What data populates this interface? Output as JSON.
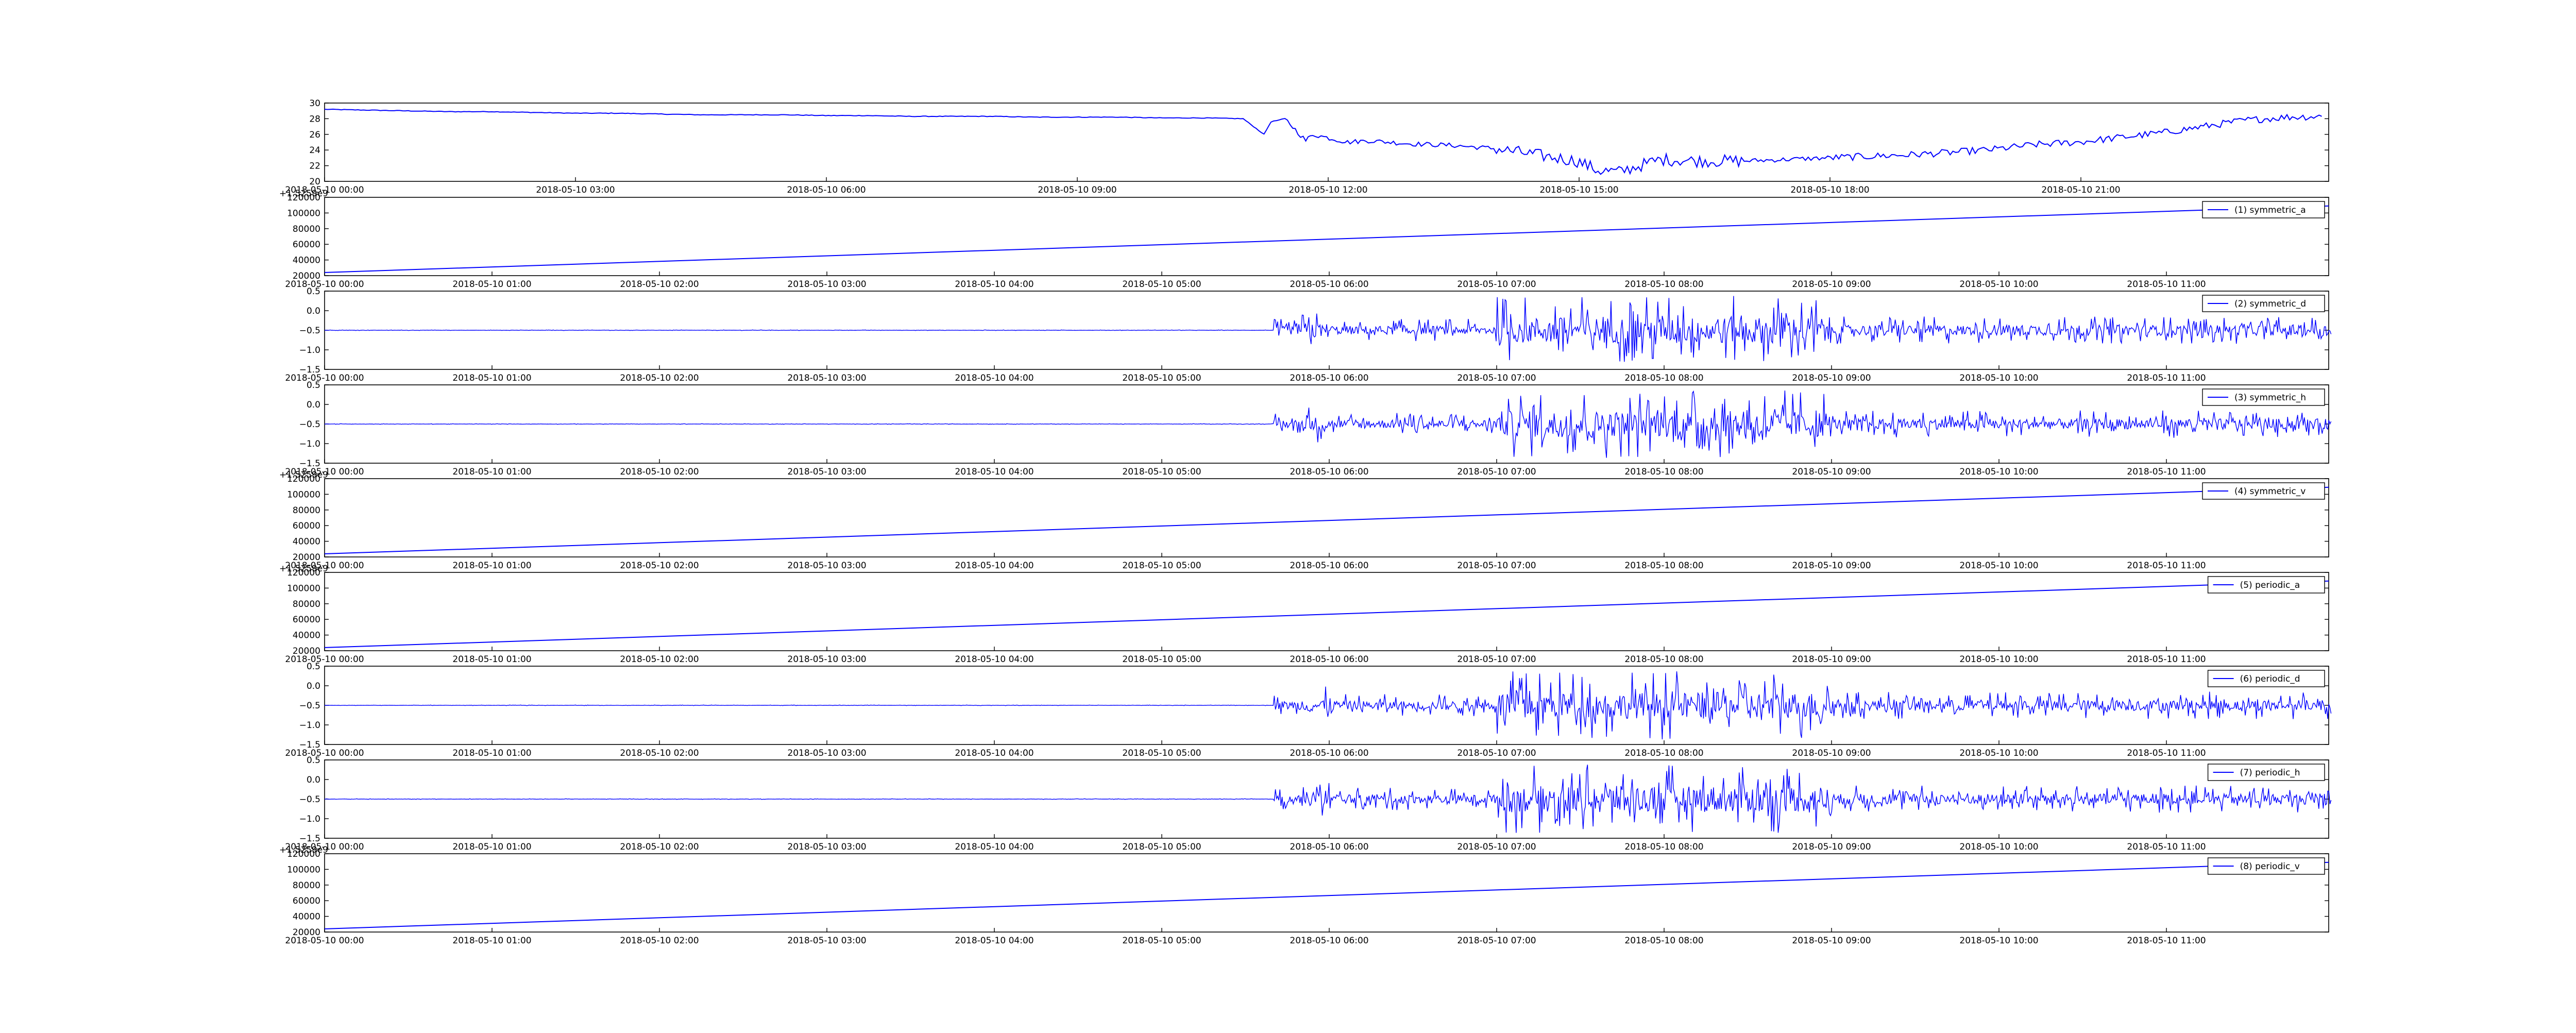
{
  "chart_data": [
    {
      "type": "line",
      "title": "",
      "xlabel": "",
      "ylabel": "",
      "ylim": [
        20,
        30
      ],
      "yticks": [
        "20",
        "22",
        "24",
        "26",
        "28",
        "30"
      ],
      "xticks": [
        "2018-05-10 00:00",
        "2018-05-10 03:00",
        "2018-05-10 06:00",
        "2018-05-10 09:00",
        "2018-05-10 12:00",
        "2018-05-10 15:00",
        "2018-05-10 18:00",
        "2018-05-10 21:00"
      ],
      "series_color": "#0000ff",
      "x": [
        "2018-05-10 00:00",
        "2018-05-10 00:30",
        "2018-05-10 01:00",
        "2018-05-10 01:30",
        "2018-05-10 02:00",
        "2018-05-10 02:30",
        "2018-05-10 03:00",
        "2018-05-10 03:30",
        "2018-05-10 04:00",
        "2018-05-10 04:30",
        "2018-05-10 05:00",
        "2018-05-10 05:30",
        "2018-05-10 06:00",
        "2018-05-10 06:30",
        "2018-05-10 07:00",
        "2018-05-10 07:30",
        "2018-05-10 08:00",
        "2018-05-10 08:30",
        "2018-05-10 09:00",
        "2018-05-10 09:30",
        "2018-05-10 10:00",
        "2018-05-10 10:30",
        "2018-05-10 11:00",
        "2018-05-10 11:15",
        "2018-05-10 11:20",
        "2018-05-10 11:30",
        "2018-05-10 11:45",
        "2018-05-10 11:50",
        "2018-05-10 12:00",
        "2018-05-10 12:15",
        "2018-05-10 12:30",
        "2018-05-10 13:00",
        "2018-05-10 13:30",
        "2018-05-10 14:00",
        "2018-05-10 14:30",
        "2018-05-10 15:00",
        "2018-05-10 15:15",
        "2018-05-10 15:30",
        "2018-05-10 16:00",
        "2018-05-10 16:30",
        "2018-05-10 17:00",
        "2018-05-10 17:30",
        "2018-05-10 18:00",
        "2018-05-10 18:30",
        "2018-05-10 19:00",
        "2018-05-10 19:30",
        "2018-05-10 20:00",
        "2018-05-10 20:30",
        "2018-05-10 21:00",
        "2018-05-10 21:30",
        "2018-05-10 22:00",
        "2018-05-10 22:30",
        "2018-05-10 23:00",
        "2018-05-10 23:30",
        "2018-05-10 23:55"
      ],
      "values": [
        29.2,
        29.1,
        29.0,
        28.9,
        28.9,
        28.8,
        28.7,
        28.7,
        28.6,
        28.5,
        28.5,
        28.5,
        28.4,
        28.4,
        28.3,
        28.3,
        28.3,
        28.2,
        28.2,
        28.2,
        28.1,
        28.1,
        28.0,
        26.0,
        27.6,
        28.0,
        25.2,
        26.0,
        25.6,
        25.0,
        25.2,
        24.8,
        24.6,
        24.2,
        23.4,
        22.6,
        21.4,
        21.2,
        22.8,
        22.6,
        22.6,
        22.8,
        23.0,
        23.2,
        23.4,
        23.7,
        24.1,
        24.7,
        25.0,
        25.6,
        26.2,
        27.0,
        27.8,
        28.2,
        28.3
      ]
    },
    {
      "type": "line",
      "title": "",
      "ylim": [
        20000,
        120000
      ],
      "offset_label": "+1.5259e9",
      "yticks": [
        "20000",
        "40000",
        "60000",
        "80000",
        "100000",
        "120000"
      ],
      "xticks": [
        "2018-05-10 00:00",
        "2018-05-10 01:00",
        "2018-05-10 02:00",
        "2018-05-10 03:00",
        "2018-05-10 04:00",
        "2018-05-10 05:00",
        "2018-05-10 06:00",
        "2018-05-10 07:00",
        "2018-05-10 08:00",
        "2018-05-10 09:00",
        "2018-05-10 10:00",
        "2018-05-10 11:00"
      ],
      "series": [
        {
          "name": "(1) symmetric_a",
          "x": [
            "2018-05-10 00:00",
            "2018-05-10 11:59"
          ],
          "values": [
            24000,
            109000
          ]
        }
      ]
    },
    {
      "type": "line",
      "title": "",
      "ylim": [
        -1.5,
        0.5
      ],
      "yticks": [
        "−1.5",
        "−1.0",
        "−0.5",
        "0.0",
        "0.5"
      ],
      "xticks": [
        "2018-05-10 00:00",
        "2018-05-10 01:00",
        "2018-05-10 02:00",
        "2018-05-10 03:00",
        "2018-05-10 04:00",
        "2018-05-10 05:00",
        "2018-05-10 06:00",
        "2018-05-10 07:00",
        "2018-05-10 08:00",
        "2018-05-10 09:00",
        "2018-05-10 10:00",
        "2018-05-10 11:00"
      ],
      "baseline": -0.5,
      "series": [
        {
          "name": "(2) symmetric_d"
        }
      ]
    },
    {
      "type": "line",
      "title": "",
      "ylim": [
        -1.5,
        0.5
      ],
      "yticks": [
        "−1.5",
        "−1.0",
        "−0.5",
        "0.0",
        "0.5"
      ],
      "xticks": [
        "2018-05-10 00:00",
        "2018-05-10 01:00",
        "2018-05-10 02:00",
        "2018-05-10 03:00",
        "2018-05-10 04:00",
        "2018-05-10 05:00",
        "2018-05-10 06:00",
        "2018-05-10 07:00",
        "2018-05-10 08:00",
        "2018-05-10 09:00",
        "2018-05-10 10:00",
        "2018-05-10 11:00"
      ],
      "baseline": -0.5,
      "series": [
        {
          "name": "(3) symmetric_h"
        }
      ]
    },
    {
      "type": "line",
      "title": "",
      "ylim": [
        20000,
        120000
      ],
      "offset_label": "+1.5259e9",
      "yticks": [
        "20000",
        "40000",
        "60000",
        "80000",
        "100000",
        "120000"
      ],
      "xticks": [
        "2018-05-10 00:00",
        "2018-05-10 01:00",
        "2018-05-10 02:00",
        "2018-05-10 03:00",
        "2018-05-10 04:00",
        "2018-05-10 05:00",
        "2018-05-10 06:00",
        "2018-05-10 07:00",
        "2018-05-10 08:00",
        "2018-05-10 09:00",
        "2018-05-10 10:00",
        "2018-05-10 11:00"
      ],
      "series": [
        {
          "name": "(4) symmetric_v",
          "x": [
            "2018-05-10 00:00",
            "2018-05-10 11:59"
          ],
          "values": [
            24000,
            109000
          ]
        }
      ]
    },
    {
      "type": "line",
      "title": "",
      "ylim": [
        20000,
        120000
      ],
      "offset_label": "+1.5259e9",
      "yticks": [
        "20000",
        "40000",
        "60000",
        "80000",
        "100000",
        "120000"
      ],
      "xticks": [
        "2018-05-10 00:00",
        "2018-05-10 01:00",
        "2018-05-10 02:00",
        "2018-05-10 03:00",
        "2018-05-10 04:00",
        "2018-05-10 05:00",
        "2018-05-10 06:00",
        "2018-05-10 07:00",
        "2018-05-10 08:00",
        "2018-05-10 09:00",
        "2018-05-10 10:00",
        "2018-05-10 11:00"
      ],
      "series": [
        {
          "name": "(5) periodic_a",
          "x": [
            "2018-05-10 00:00",
            "2018-05-10 11:59"
          ],
          "values": [
            24000,
            109000
          ]
        }
      ]
    },
    {
      "type": "line",
      "title": "",
      "ylim": [
        -1.5,
        0.5
      ],
      "yticks": [
        "−1.5",
        "−1.0",
        "−0.5",
        "0.0",
        "0.5"
      ],
      "xticks": [
        "2018-05-10 00:00",
        "2018-05-10 01:00",
        "2018-05-10 02:00",
        "2018-05-10 03:00",
        "2018-05-10 04:00",
        "2018-05-10 05:00",
        "2018-05-10 06:00",
        "2018-05-10 07:00",
        "2018-05-10 08:00",
        "2018-05-10 09:00",
        "2018-05-10 10:00",
        "2018-05-10 11:00"
      ],
      "baseline": -0.5,
      "series": [
        {
          "name": "(6) periodic_d"
        }
      ]
    },
    {
      "type": "line",
      "title": "",
      "ylim": [
        -1.5,
        0.5
      ],
      "yticks": [
        "−1.5",
        "−1.0",
        "−0.5",
        "0.0",
        "0.5"
      ],
      "xticks": [
        "2018-05-10 00:00",
        "2018-05-10 01:00",
        "2018-05-10 02:00",
        "2018-05-10 03:00",
        "2018-05-10 04:00",
        "2018-05-10 05:00",
        "2018-05-10 06:00",
        "2018-05-10 07:00",
        "2018-05-10 08:00",
        "2018-05-10 09:00",
        "2018-05-10 10:00",
        "2018-05-10 11:00"
      ],
      "baseline": -0.5,
      "series": [
        {
          "name": "(7) periodic_h"
        }
      ]
    },
    {
      "type": "line",
      "title": "",
      "ylim": [
        20000,
        120000
      ],
      "offset_label": "+1.5259e9",
      "yticks": [
        "20000",
        "40000",
        "60000",
        "80000",
        "100000",
        "120000"
      ],
      "xticks": [
        "2018-05-10 00:00",
        "2018-05-10 01:00",
        "2018-05-10 02:00",
        "2018-05-10 03:00",
        "2018-05-10 04:00",
        "2018-05-10 05:00",
        "2018-05-10 06:00",
        "2018-05-10 07:00",
        "2018-05-10 08:00",
        "2018-05-10 09:00",
        "2018-05-10 10:00",
        "2018-05-10 11:00"
      ],
      "series": [
        {
          "name": "(8) periodic_v",
          "x": [
            "2018-05-10 00:00",
            "2018-05-10 11:59"
          ],
          "values": [
            24000,
            109000
          ]
        }
      ]
    }
  ]
}
